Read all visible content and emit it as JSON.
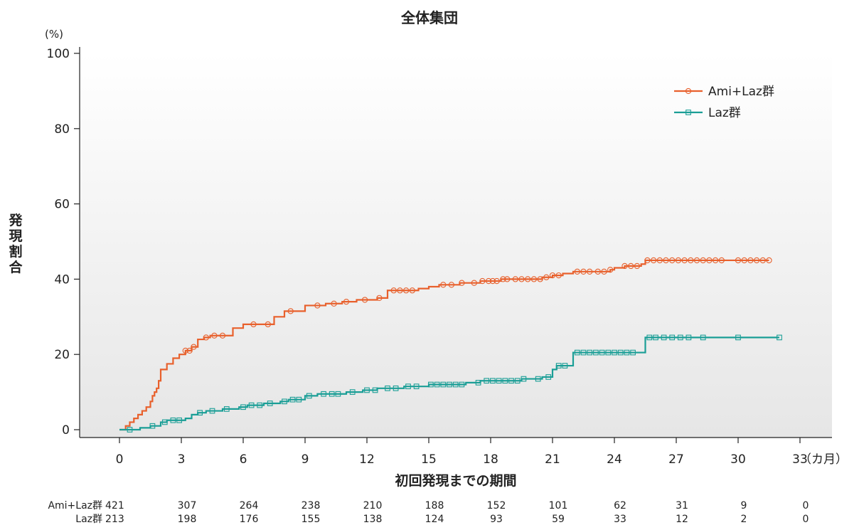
{
  "chart_data": {
    "type": "line",
    "title": "全体集団",
    "y_unit": "(%)",
    "ylabel": "発現割合",
    "xlabel": "初回発現までの期間",
    "x_unit": "（カ月）",
    "xlim": [
      0,
      33
    ],
    "ylim": [
      0,
      100
    ],
    "x_ticks": [
      0,
      3,
      6,
      9,
      12,
      15,
      18,
      21,
      24,
      27,
      30,
      33
    ],
    "y_ticks": [
      0,
      20,
      40,
      60,
      80,
      100
    ],
    "grid": false,
    "legend_position": "top-right",
    "series": [
      {
        "name": "Ami+Laz群",
        "color": "#E8602C",
        "marker": "circle",
        "points": [
          [
            0,
            0
          ],
          [
            0.2,
            0
          ],
          [
            0.3,
            1
          ],
          [
            0.5,
            2
          ],
          [
            0.7,
            3
          ],
          [
            0.9,
            4
          ],
          [
            1.1,
            5
          ],
          [
            1.3,
            6
          ],
          [
            1.5,
            7.5
          ],
          [
            1.6,
            9
          ],
          [
            1.7,
            10
          ],
          [
            1.8,
            11
          ],
          [
            1.9,
            13
          ],
          [
            2.0,
            16
          ],
          [
            2.3,
            17.5
          ],
          [
            2.6,
            19
          ],
          [
            2.9,
            20
          ],
          [
            3.2,
            21
          ],
          [
            3.5,
            22
          ],
          [
            3.8,
            24
          ],
          [
            4.1,
            24.5
          ],
          [
            4.4,
            25
          ],
          [
            5.5,
            27
          ],
          [
            6.0,
            28
          ],
          [
            7.5,
            30
          ],
          [
            8.0,
            31.5
          ],
          [
            9.0,
            33
          ],
          [
            10.0,
            33.5
          ],
          [
            10.8,
            34
          ],
          [
            11.5,
            34.5
          ],
          [
            12.5,
            35
          ],
          [
            13.0,
            37
          ],
          [
            14.5,
            37.5
          ],
          [
            15.0,
            38
          ],
          [
            15.5,
            38.5
          ],
          [
            16.5,
            39
          ],
          [
            17.5,
            39.5
          ],
          [
            18.5,
            40
          ],
          [
            20.5,
            40.5
          ],
          [
            21.0,
            41
          ],
          [
            21.5,
            41.5
          ],
          [
            22.0,
            42
          ],
          [
            23.8,
            42.5
          ],
          [
            24.0,
            43
          ],
          [
            24.5,
            43.5
          ],
          [
            25.3,
            44
          ],
          [
            25.5,
            45
          ],
          [
            27.0,
            45
          ],
          [
            31.5,
            45
          ]
        ],
        "censored_x": [
          3.2,
          3.4,
          3.6,
          4.2,
          4.6,
          5.0,
          6.5,
          7.2,
          8.3,
          9.6,
          10.4,
          11.0,
          11.9,
          12.6,
          13.3,
          13.6,
          13.9,
          14.2,
          15.7,
          16.1,
          16.6,
          17.2,
          17.6,
          17.9,
          18.1,
          18.3,
          18.6,
          18.8,
          19.2,
          19.5,
          19.8,
          20.1,
          20.4,
          20.7,
          21.0,
          21.3,
          22.2,
          22.5,
          22.8,
          23.2,
          23.5,
          23.8,
          24.5,
          24.8,
          25.1,
          25.6,
          25.9,
          26.2,
          26.5,
          26.8,
          27.1,
          27.4,
          27.7,
          28.0,
          28.3,
          28.6,
          28.9,
          29.2,
          30.0,
          30.3,
          30.6,
          30.9,
          31.2,
          31.5
        ]
      },
      {
        "name": "Laz群",
        "color": "#1A9E96",
        "marker": "square",
        "points": [
          [
            0,
            0
          ],
          [
            0.4,
            0
          ],
          [
            1.0,
            0.5
          ],
          [
            1.5,
            1
          ],
          [
            2.0,
            2
          ],
          [
            2.3,
            2.5
          ],
          [
            3.2,
            3
          ],
          [
            3.5,
            4
          ],
          [
            3.8,
            4.5
          ],
          [
            4.2,
            5
          ],
          [
            5.0,
            5.5
          ],
          [
            5.8,
            6
          ],
          [
            6.2,
            6.5
          ],
          [
            7.0,
            7
          ],
          [
            7.8,
            7.5
          ],
          [
            8.2,
            8
          ],
          [
            9.0,
            9
          ],
          [
            9.6,
            9.5
          ],
          [
            11.0,
            10
          ],
          [
            11.8,
            10.5
          ],
          [
            12.5,
            11
          ],
          [
            13.8,
            11.5
          ],
          [
            15.0,
            12
          ],
          [
            16.8,
            12.5
          ],
          [
            17.5,
            13
          ],
          [
            19.5,
            13.5
          ],
          [
            20.5,
            14
          ],
          [
            21.0,
            16
          ],
          [
            21.2,
            17
          ],
          [
            22.0,
            20.5
          ],
          [
            25.3,
            20.5
          ],
          [
            25.5,
            24.5
          ],
          [
            32.0,
            24.5
          ]
        ],
        "censored_x": [
          0.5,
          1.6,
          2.2,
          2.6,
          2.9,
          3.9,
          4.5,
          5.2,
          6.0,
          6.4,
          6.8,
          7.3,
          8.0,
          8.4,
          8.7,
          9.2,
          9.9,
          10.3,
          10.6,
          11.3,
          12.0,
          12.4,
          13.0,
          13.4,
          14.0,
          14.4,
          15.1,
          15.4,
          15.7,
          16.0,
          16.3,
          16.6,
          17.4,
          17.8,
          18.1,
          18.4,
          18.7,
          19.0,
          19.3,
          19.6,
          20.3,
          20.8,
          21.3,
          21.6,
          22.2,
          22.5,
          22.8,
          23.1,
          23.4,
          23.7,
          24.0,
          24.3,
          24.6,
          24.9,
          25.7,
          26.0,
          26.4,
          26.8,
          27.2,
          27.6,
          28.3,
          30.0,
          32.0
        ]
      }
    ],
    "risk_table": {
      "time_points": [
        0,
        3,
        6,
        9,
        12,
        15,
        18,
        21,
        24,
        27,
        30,
        33
      ],
      "rows": [
        {
          "label": "Ami+Laz群",
          "values": [
            421,
            307,
            264,
            238,
            210,
            188,
            152,
            101,
            62,
            31,
            9,
            0
          ]
        },
        {
          "label": "Laz群",
          "values": [
            213,
            198,
            176,
            155,
            138,
            124,
            93,
            59,
            33,
            12,
            2,
            0
          ]
        }
      ]
    }
  }
}
